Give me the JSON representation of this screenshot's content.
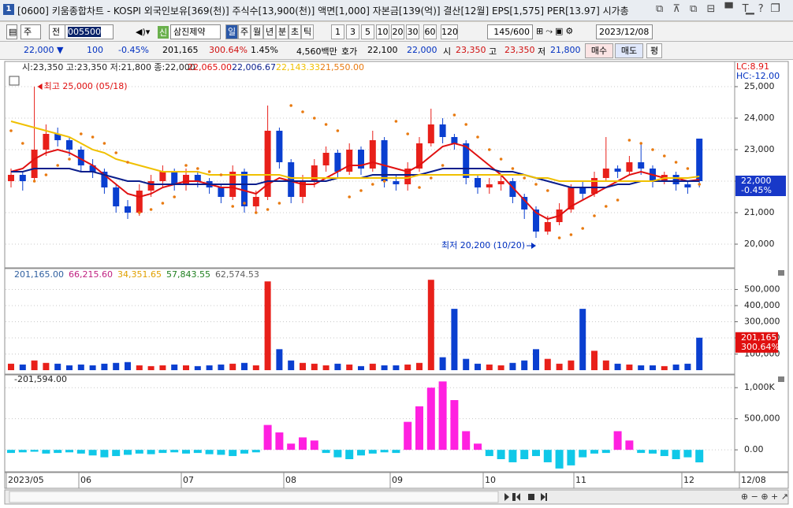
{
  "window": {
    "icon": "1",
    "title": "[0600] 키움종합차트 - KOSPI 외국인보유[369(천)] 주식수[13,900(천)] 액면[1,000] 자본금[139(억)] 결산[12월] EPS[1,575] PER[13.97] 시가총"
  },
  "toolbar": {
    "market": "주",
    "prev": "전",
    "code": "005500",
    "stock": "삼진제약",
    "new_badge": "신",
    "periods": [
      "일",
      "주",
      "월",
      "년",
      "분",
      "초",
      "틱"
    ],
    "units": [
      "1",
      "3",
      "5",
      "10",
      "20",
      "30",
      "60",
      "120"
    ],
    "count": "145/600",
    "date": "2023/12/08"
  },
  "quote": {
    "price": "22,000 ▼",
    "change": "100",
    "rate": "-0.45%",
    "volume": "201,165",
    "vol_rate": "300.64%",
    "turnover": "1.45%",
    "amount": "4,560백만",
    "hoga_label": "호가",
    "ask": "22,100",
    "bid": "22,000",
    "open_label": "시",
    "open": "23,350",
    "high_label": "고",
    "high": "23,350",
    "low_label": "저",
    "low": "21,800",
    "buy": "매수",
    "sell": "매도",
    "avg": "평"
  },
  "chart_data": [
    {
      "type": "candlestick",
      "legend": "시:23,350 고:23,350 저:21,800 종:22,000",
      "up_color": "#e8201a",
      "down_color": "#0a3fd0",
      "open": [
        22000,
        22200,
        22100,
        23000,
        23500,
        23300,
        23000,
        22500,
        22300,
        21800,
        21200,
        21000,
        21700,
        22000,
        22300,
        21900,
        22200,
        22000,
        21800,
        21500,
        22300,
        21200,
        21500,
        23600,
        22600,
        21500,
        22000,
        22500,
        22900,
        22300,
        23000,
        22400,
        23300,
        22000,
        21900,
        22400,
        23200,
        23800,
        23400,
        23200,
        22100,
        21800,
        21900,
        22000,
        21500,
        21100,
        20400,
        20700,
        21100,
        21800,
        21600,
        22100,
        22400,
        22300,
        22600,
        22400,
        22000,
        22200,
        21900,
        23350
      ],
      "high": [
        22400,
        22300,
        25000,
        23800,
        23700,
        23400,
        23100,
        22700,
        22400,
        21900,
        21400,
        21900,
        22200,
        22500,
        22400,
        22400,
        22300,
        22100,
        21900,
        22500,
        22400,
        21700,
        24400,
        23700,
        22700,
        22200,
        22700,
        23100,
        23000,
        23200,
        23100,
        23600,
        23400,
        22200,
        22600,
        23400,
        24300,
        24000,
        23500,
        23300,
        22200,
        22100,
        22200,
        22100,
        21600,
        21200,
        20900,
        21300,
        21900,
        22000,
        22300,
        23400,
        22500,
        22800,
        23200,
        22500,
        22300,
        22300,
        22000,
        23350
      ],
      "low": [
        21800,
        21700,
        22000,
        22800,
        23100,
        22800,
        22300,
        22100,
        21600,
        21000,
        20800,
        20900,
        21500,
        21800,
        21700,
        21700,
        21800,
        21600,
        21300,
        21400,
        21000,
        21000,
        21400,
        22400,
        21300,
        21300,
        21800,
        22300,
        22100,
        22200,
        22200,
        22300,
        21800,
        21700,
        21700,
        22300,
        23100,
        23200,
        23000,
        21900,
        21600,
        21600,
        21700,
        21300,
        20800,
        20200,
        20300,
        20600,
        21000,
        21400,
        21500,
        22000,
        22100,
        22200,
        22200,
        21800,
        21900,
        21700,
        21600,
        21800
      ],
      "close": [
        22200,
        22000,
        23000,
        23500,
        23300,
        23000,
        22500,
        22300,
        21800,
        21200,
        21000,
        21700,
        22000,
        22300,
        21900,
        22200,
        22000,
        21800,
        21500,
        22300,
        21200,
        21500,
        23600,
        22600,
        21500,
        22000,
        22500,
        22900,
        22300,
        23000,
        22400,
        23300,
        22000,
        21900,
        22400,
        23200,
        23800,
        23400,
        23200,
        22100,
        21800,
        21900,
        22000,
        21500,
        21100,
        20400,
        20700,
        21100,
        21800,
        21600,
        22100,
        22400,
        22300,
        22600,
        22400,
        22000,
        22200,
        21900,
        21800,
        22000
      ],
      "series": [
        {
          "name": "22,065.00",
          "color": "#e01010",
          "values": [
            22300,
            22400,
            22700,
            22900,
            23000,
            22900,
            22700,
            22500,
            22200,
            21900,
            21600,
            21500,
            21600,
            21800,
            21900,
            22000,
            22000,
            21900,
            21800,
            21800,
            21700,
            21600,
            21900,
            22100,
            22000,
            21900,
            21900,
            22100,
            22300,
            22500,
            22500,
            22600,
            22500,
            22400,
            22300,
            22500,
            22800,
            23100,
            23200,
            23100,
            22800,
            22500,
            22200,
            21800,
            21400,
            21000,
            20800,
            20900,
            21200,
            21400,
            21600,
            21800,
            22000,
            22200,
            22300,
            22200,
            22100,
            22100,
            22000,
            22050
          ]
        },
        {
          "name": "22,006.67",
          "color": "#0a1e8c",
          "values": [
            22300,
            22300,
            22400,
            22400,
            22400,
            22400,
            22300,
            22300,
            22200,
            22100,
            22000,
            22000,
            21900,
            21900,
            21900,
            21900,
            21900,
            21900,
            21900,
            21900,
            21900,
            21900,
            22000,
            22000,
            22000,
            22000,
            22000,
            22000,
            22100,
            22100,
            22100,
            22200,
            22200,
            22200,
            22200,
            22200,
            22300,
            22400,
            22400,
            22400,
            22400,
            22400,
            22300,
            22300,
            22200,
            22100,
            22000,
            21900,
            21800,
            21800,
            21800,
            21800,
            21900,
            21900,
            22000,
            22000,
            22000,
            22000,
            22000,
            22000
          ]
        },
        {
          "name": "22,143.33",
          "color": "#f0c000",
          "values": [
            23900,
            23800,
            23700,
            23600,
            23500,
            23400,
            23200,
            23000,
            22900,
            22700,
            22600,
            22500,
            22400,
            22300,
            22300,
            22300,
            22300,
            22200,
            22200,
            22200,
            22200,
            22200,
            22200,
            22200,
            22100,
            22100,
            22100,
            22100,
            22100,
            22100,
            22100,
            22100,
            22100,
            22100,
            22100,
            22200,
            22200,
            22200,
            22200,
            22200,
            22200,
            22200,
            22200,
            22200,
            22200,
            22100,
            22100,
            22000,
            22000,
            22000,
            22000,
            22000,
            22000,
            22000,
            22000,
            22000,
            22100,
            22100,
            22100,
            22150
          ]
        },
        {
          "name": "21,550.00",
          "color": "#e87a10",
          "style": "dots",
          "values": [
            23600,
            23200,
            22000,
            22200,
            22500,
            22700,
            23500,
            23400,
            23200,
            22900,
            22600,
            21000,
            21100,
            21300,
            21500,
            22500,
            22400,
            22300,
            22200,
            21200,
            21300,
            21000,
            21100,
            21300,
            24400,
            24200,
            24000,
            23800,
            23600,
            21500,
            21700,
            21900,
            22000,
            23900,
            23500,
            21800,
            22100,
            22500,
            24100,
            23800,
            23400,
            23000,
            22700,
            22400,
            22100,
            21900,
            21700,
            20200,
            20300,
            20500,
            20900,
            21200,
            21400,
            23300,
            23200,
            23000,
            22800,
            22600,
            22400,
            21900
          ]
        }
      ],
      "ylim": [
        19300,
        25750
      ],
      "yticks": [
        {
          "value": 20000,
          "label": "20,000"
        },
        {
          "value": 21000,
          "label": "21,000"
        },
        {
          "value": 22000,
          "label": "22,000"
        },
        {
          "value": 23000,
          "label": "23,000"
        },
        {
          "value": 24000,
          "label": "24,000"
        },
        {
          "value": 25000,
          "label": "25,000"
        }
      ],
      "annotations": [
        "최고 25,000 (05/18)",
        "최저 20,200 (10/20)"
      ],
      "scale_info": [
        "LC:8.91",
        "HC:-12.00"
      ],
      "last": {
        "value": 22000,
        "label": "22,000",
        "rate": "-0.45%"
      },
      "grid": true
    },
    {
      "type": "volume",
      "legend": [
        "201,165.00",
        "66,215.60",
        "34,351.65",
        "57,843.55",
        "62,574.53"
      ],
      "legend_colors": [
        "#3060a0",
        "#c02080",
        "#e0a000",
        "#208020",
        "#606060"
      ],
      "values": [
        40000,
        35000,
        60000,
        45000,
        40000,
        30000,
        35000,
        30000,
        40000,
        45000,
        50000,
        30000,
        25000,
        30000,
        35000,
        30000,
        25000,
        30000,
        35000,
        40000,
        45000,
        30000,
        550000,
        130000,
        60000,
        45000,
        40000,
        30000,
        40000,
        35000,
        25000,
        40000,
        30000,
        30000,
        35000,
        45000,
        560000,
        80000,
        380000,
        70000,
        40000,
        35000,
        30000,
        45000,
        60000,
        130000,
        70000,
        40000,
        60000,
        380000,
        120000,
        60000,
        40000,
        35000,
        30000,
        30000,
        25000,
        35000,
        40000,
        201165
      ],
      "ylim": [
        0,
        610000
      ],
      "yticks": [
        {
          "value": 100000,
          "label": "100,000"
        },
        {
          "value": 200000,
          "label": "200,000"
        },
        {
          "value": 300000,
          "label": "300,000"
        },
        {
          "value": 400000,
          "label": "400,000"
        },
        {
          "value": 500000,
          "label": "500,000"
        }
      ],
      "last": {
        "value": 201165,
        "label": "201,165",
        "rate": "300.64%"
      },
      "grid": true
    },
    {
      "type": "oscillator",
      "legend": "-201,594.00",
      "pos_color": "#ff20e0",
      "neg_color": "#10c8e8",
      "values": [
        -50000,
        -40000,
        -30000,
        -60000,
        -50000,
        -40000,
        -60000,
        -90000,
        -120000,
        -100000,
        -80000,
        -60000,
        -70000,
        -50000,
        -40000,
        -60000,
        -50000,
        -70000,
        -80000,
        -100000,
        -60000,
        -40000,
        400000,
        280000,
        100000,
        200000,
        150000,
        -50000,
        -120000,
        -150000,
        -90000,
        -60000,
        -40000,
        -50000,
        450000,
        700000,
        1000000,
        1100000,
        800000,
        300000,
        100000,
        -100000,
        -150000,
        -200000,
        -150000,
        -100000,
        -200000,
        -300000,
        -250000,
        -120000,
        -60000,
        -50000,
        300000,
        150000,
        -50000,
        -60000,
        -100000,
        -150000,
        -120000,
        -201594
      ],
      "ylim": [
        -340000,
        1180000
      ],
      "yticks": [
        {
          "value": 0,
          "label": "0.00"
        },
        {
          "value": 500000,
          "label": "500,000"
        },
        {
          "value": 1000000,
          "label": "1,000K"
        }
      ],
      "grid": true
    }
  ],
  "x_labels": [
    "2023/05",
    "06",
    "07",
    "08",
    "09",
    "10",
    "11",
    "12",
    "12/08"
  ]
}
